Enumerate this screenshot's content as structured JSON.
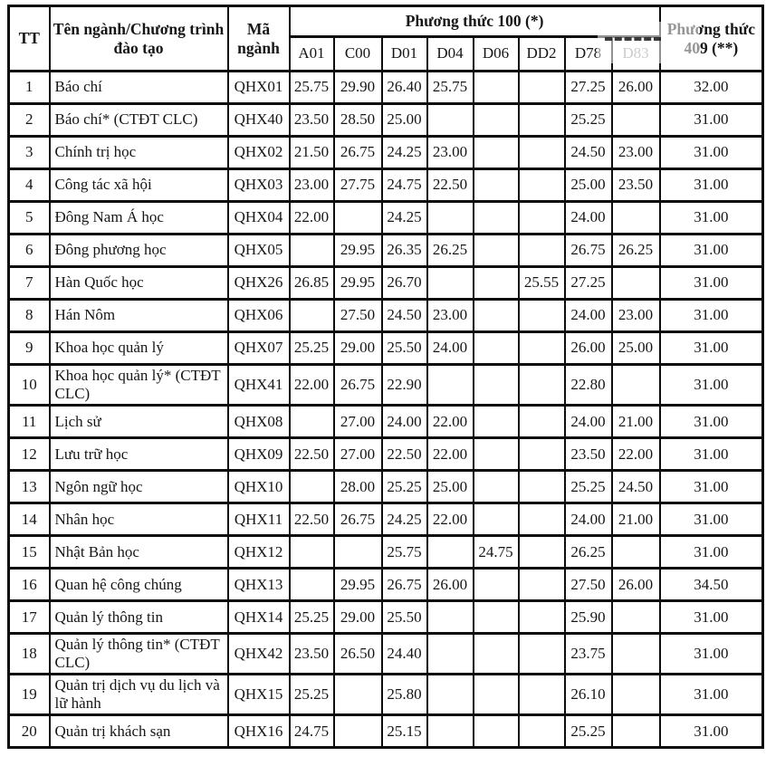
{
  "page": {
    "ink_color": "#161616",
    "border_color": "#0d0d0d",
    "background_color": "#ffffff"
  },
  "table": {
    "headers": {
      "tt": "TT",
      "name": "Tên ngành/Chương trình đào tạo",
      "code": "Mã ngành",
      "method100": "Phương thức 100 (*)",
      "method409": "Phương thức 409 (**)",
      "subjects": [
        "A01",
        "C00",
        "D01",
        "D04",
        "D06",
        "DD2",
        "D78",
        "D83"
      ]
    },
    "rows": [
      {
        "tt": "1",
        "name": "Báo chí",
        "code": "QHX01",
        "scores": [
          "25.75",
          "29.90",
          "26.40",
          "25.75",
          "",
          "",
          "27.25",
          "26.00"
        ],
        "m409": "32.00"
      },
      {
        "tt": "2",
        "name": "Báo chí* (CTĐT CLC)",
        "code": "QHX40",
        "scores": [
          "23.50",
          "28.50",
          "25.00",
          "",
          "",
          "",
          "25.25",
          ""
        ],
        "m409": "31.00"
      },
      {
        "tt": "3",
        "name": "Chính trị học",
        "code": "QHX02",
        "scores": [
          "21.50",
          "26.75",
          "24.25",
          "23.00",
          "",
          "",
          "24.50",
          "23.00"
        ],
        "m409": "31.00"
      },
      {
        "tt": "4",
        "name": "Công tác xã hội",
        "code": "QHX03",
        "scores": [
          "23.00",
          "27.75",
          "24.75",
          "22.50",
          "",
          "",
          "25.00",
          "23.50"
        ],
        "m409": "31.00"
      },
      {
        "tt": "5",
        "name": "Đông Nam Á học",
        "code": "QHX04",
        "scores": [
          "22.00",
          "",
          "24.25",
          "",
          "",
          "",
          "24.00",
          ""
        ],
        "m409": "31.00"
      },
      {
        "tt": "6",
        "name": "Đông phương học",
        "code": "QHX05",
        "scores": [
          "",
          "29.95",
          "26.35",
          "26.25",
          "",
          "",
          "26.75",
          "26.25"
        ],
        "m409": "31.00"
      },
      {
        "tt": "7",
        "name": "Hàn Quốc học",
        "code": "QHX26",
        "scores": [
          "26.85",
          "29.95",
          "26.70",
          "",
          "",
          "25.55",
          "27.25",
          ""
        ],
        "m409": "31.00"
      },
      {
        "tt": "8",
        "name": "Hán Nôm",
        "code": "QHX06",
        "scores": [
          "",
          "27.50",
          "24.50",
          "23.00",
          "",
          "",
          "24.00",
          "23.00"
        ],
        "m409": "31.00"
      },
      {
        "tt": "9",
        "name": "Khoa học quản lý",
        "code": "QHX07",
        "scores": [
          "25.25",
          "29.00",
          "25.50",
          "24.00",
          "",
          "",
          "26.00",
          "25.00"
        ],
        "m409": "31.00"
      },
      {
        "tt": "10",
        "name": "Khoa học quản lý* (CTĐT CLC)",
        "code": "QHX41",
        "scores": [
          "22.00",
          "26.75",
          "22.90",
          "",
          "",
          "",
          "22.80",
          ""
        ],
        "m409": "31.00"
      },
      {
        "tt": "11",
        "name": "Lịch sử",
        "code": "QHX08",
        "scores": [
          "",
          "27.00",
          "24.00",
          "22.00",
          "",
          "",
          "24.00",
          "21.00"
        ],
        "m409": "31.00"
      },
      {
        "tt": "12",
        "name": "Lưu trữ học",
        "code": "QHX09",
        "scores": [
          "22.50",
          "27.00",
          "22.50",
          "22.00",
          "",
          "",
          "23.50",
          "22.00"
        ],
        "m409": "31.00"
      },
      {
        "tt": "13",
        "name": "Ngôn ngữ học",
        "code": "QHX10",
        "scores": [
          "",
          "28.00",
          "25.25",
          "25.00",
          "",
          "",
          "25.25",
          "24.50"
        ],
        "m409": "31.00"
      },
      {
        "tt": "14",
        "name": "Nhân học",
        "code": "QHX11",
        "scores": [
          "22.50",
          "26.75",
          "24.25",
          "22.00",
          "",
          "",
          "24.00",
          "21.00"
        ],
        "m409": "31.00"
      },
      {
        "tt": "15",
        "name": "Nhật Bản học",
        "code": "QHX12",
        "scores": [
          "",
          "",
          "25.75",
          "",
          "24.75",
          "",
          "26.25",
          ""
        ],
        "m409": "31.00"
      },
      {
        "tt": "16",
        "name": "Quan hệ công chúng",
        "code": "QHX13",
        "scores": [
          "",
          "29.95",
          "26.75",
          "26.00",
          "",
          "",
          "27.50",
          "26.00"
        ],
        "m409": "34.50"
      },
      {
        "tt": "17",
        "name": "Quản lý thông tin",
        "code": "QHX14",
        "scores": [
          "25.25",
          "29.00",
          "25.50",
          "",
          "",
          "",
          "25.90",
          ""
        ],
        "m409": "31.00"
      },
      {
        "tt": "18",
        "name": "Quản lý thông tin* (CTĐT CLC)",
        "code": "QHX42",
        "scores": [
          "23.50",
          "26.50",
          "24.40",
          "",
          "",
          "",
          "23.75",
          ""
        ],
        "m409": "31.00"
      },
      {
        "tt": "19",
        "name": "Quản trị dịch vụ du lịch và lữ hành",
        "code": "QHX15",
        "scores": [
          "25.25",
          "",
          "25.80",
          "",
          "",
          "",
          "26.10",
          ""
        ],
        "m409": "31.00"
      },
      {
        "tt": "20",
        "name": "Quản trị khách sạn",
        "code": "QHX16",
        "scores": [
          "24.75",
          "",
          "25.15",
          "",
          "",
          "",
          "25.25",
          ""
        ],
        "m409": "31.00"
      }
    ]
  }
}
